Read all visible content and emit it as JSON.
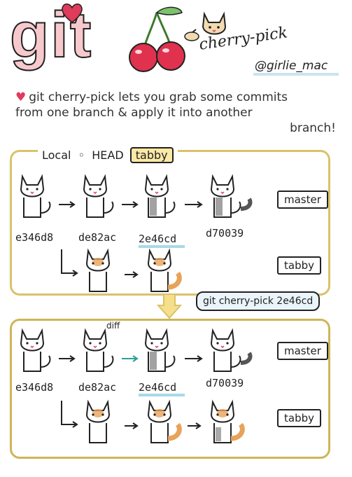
{
  "title": {
    "main": "git",
    "subtitle": "cherry-pick",
    "handle": "@girlie_mac"
  },
  "description": {
    "line1": "git cherry-pick lets you grab some commits",
    "line2": "from one branch & apply it into another",
    "line3": "branch!"
  },
  "local_label": "Local",
  "head_label": "HEAD",
  "head_branch": "tabby",
  "before": {
    "master_commits": [
      "e346d8",
      "de82ac",
      "2e46cd",
      "d70039"
    ],
    "master_label": "master",
    "tabby_label": "tabby"
  },
  "command": "git cherry-pick 2e46cd",
  "after": {
    "master_commits": [
      "e346d8",
      "de82ac",
      "2e46cd",
      "d70039"
    ],
    "master_label": "master",
    "tabby_label": "tabby",
    "diff_label": "diff"
  },
  "colors": {
    "pink": "#f7c9cd",
    "frame": "#d9c26a",
    "highlight": "#a8d9e7",
    "heart": "#e03b5a",
    "cherry": "#e0314f",
    "tabby_orange": "#e8a25a"
  },
  "icons": [
    "heart-icon",
    "cherry-icon",
    "cat-icon",
    "arrow-icon"
  ]
}
